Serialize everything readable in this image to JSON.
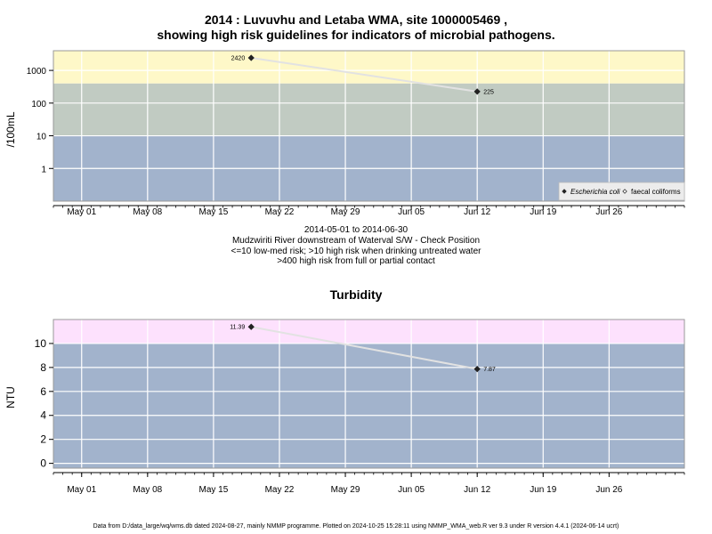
{
  "page": {
    "title_line1": "2014 : Luvuvhu and Letaba WMA, site 1000005469 ,",
    "title_line2": "showing high risk guidelines for indicators of microbial pathogens.",
    "info": [
      "2014-05-01 to 2014-06-30",
      "Mudzwiriti River downstream of Waterval S/W - Check Position",
      "<=10 low-med risk; >10 high risk when drinking untreated water",
      ">400 high risk from full or partial contact"
    ],
    "turbidity_title": "Turbidity",
    "footer": "Data from D:/data_large/wq/wms.db dated 2024-08-27, mainly NMMP programme. Plotted on 2024-10-25 15:28:11 using NMMP_WMA_web.R ver 9.3 under R version 4.4.1 (2024-06-14 ucrt)"
  },
  "chart_data": [
    {
      "type": "line",
      "ylabel": "/100mL",
      "xlabel": "",
      "y_scale": "log",
      "ylim": [
        0.1,
        4000
      ],
      "xlim": [
        "2014-04-28",
        "2014-07-04"
      ],
      "y_ticks": [
        1,
        10,
        100,
        1000
      ],
      "y_tick_labels": [
        "1",
        "10",
        "100",
        "1000"
      ],
      "x_ticks": [
        "2014-05-01",
        "2014-05-08",
        "2014-05-15",
        "2014-05-22",
        "2014-05-29",
        "2014-06-05",
        "2014-06-12",
        "2014-06-19",
        "2014-06-26"
      ],
      "x_tick_labels": [
        "May 01",
        "May 08",
        "May 15",
        "May 22",
        "May 29",
        "Jun 05",
        "Jun 12",
        "Jun 19",
        "Jun 26"
      ],
      "bands": [
        {
          "from": 0.1,
          "to": 10,
          "color": "#a2b3cc"
        },
        {
          "from": 10,
          "to": 400,
          "color": "#c1cbc2"
        },
        {
          "from": 400,
          "to": 4000,
          "color": "#fef8c8"
        }
      ],
      "grid": true,
      "legend_position": "bottom-right",
      "series": [
        {
          "name": "Escherichia coli",
          "marker": "filled-diamond",
          "color": "#222222",
          "line_color": "#e2e2e2",
          "x": [
            "2014-05-19",
            "2014-06-12"
          ],
          "values": [
            2420,
            225
          ],
          "labels": [
            "2420",
            "225"
          ]
        },
        {
          "name": "faecal coliforms",
          "marker": "open-diamond",
          "color": "#222222",
          "x": [],
          "values": [],
          "labels": []
        }
      ]
    },
    {
      "type": "line",
      "title": "Turbidity",
      "ylabel": "NTU",
      "xlabel": "",
      "ylim": [
        -0.4,
        12.0
      ],
      "xlim": [
        "2014-04-28",
        "2014-07-04"
      ],
      "y_ticks": [
        0,
        2,
        4,
        6,
        8,
        10
      ],
      "y_tick_labels": [
        "0",
        "2",
        "4",
        "6",
        "8",
        "10"
      ],
      "x_ticks": [
        "2014-05-01",
        "2014-05-08",
        "2014-05-15",
        "2014-05-22",
        "2014-05-29",
        "2014-06-05",
        "2014-06-12",
        "2014-06-19",
        "2014-06-26"
      ],
      "x_tick_labels": [
        "May 01",
        "May 08",
        "May 15",
        "May 22",
        "May 29",
        "Jun 05",
        "Jun 12",
        "Jun 19",
        "Jun 26"
      ],
      "bands": [
        {
          "from": -0.4,
          "to": 10,
          "color": "#a2b3cc"
        },
        {
          "from": 10,
          "to": 12.0,
          "color": "#fde1fd"
        }
      ],
      "grid": true,
      "series": [
        {
          "name": "",
          "marker": "filled-diamond",
          "color": "#222222",
          "line_color": "#e2e2e2",
          "x": [
            "2014-05-19",
            "2014-06-12"
          ],
          "values": [
            11.39,
            7.87
          ],
          "labels": [
            "11.39",
            "7.87"
          ]
        }
      ]
    }
  ]
}
